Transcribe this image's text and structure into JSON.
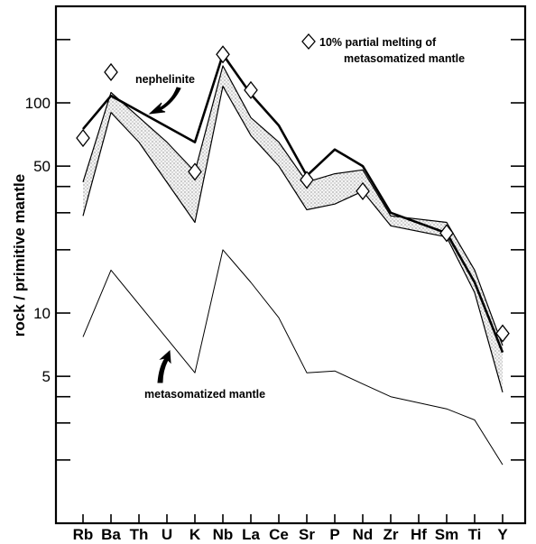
{
  "chart_data": {
    "type": "line",
    "ylabel": "rock / primitive mantle",
    "yscale": "log",
    "ylim": [
      1.6,
      200
    ],
    "yticks": [
      {
        "value": 2,
        "label": ""
      },
      {
        "value": 3,
        "label": ""
      },
      {
        "value": 4,
        "label": ""
      },
      {
        "value": 5,
        "label": "5"
      },
      {
        "value": 10,
        "label": "10"
      },
      {
        "value": 20,
        "label": ""
      },
      {
        "value": 30,
        "label": ""
      },
      {
        "value": 40,
        "label": ""
      },
      {
        "value": 50,
        "label": "50"
      },
      {
        "value": 100,
        "label": "100"
      },
      {
        "value": 200,
        "label": ""
      }
    ],
    "categories": [
      "Rb",
      "Ba",
      "Th",
      "U",
      "K",
      "Nb",
      "La",
      "Ce",
      "Sr",
      "P",
      "Nd",
      "Zr",
      "Hf",
      "Sm",
      "Ti",
      "Y"
    ],
    "series": [
      {
        "name": "nephelinite",
        "style": "thick-line",
        "values": [
          75,
          108,
          null,
          null,
          65,
          170,
          110,
          78,
          45,
          60,
          50,
          30,
          null,
          24,
          14,
          6.5
        ]
      },
      {
        "style": "band-upper",
        "values": [
          42,
          112,
          null,
          65,
          47,
          150,
          85,
          65,
          42,
          46,
          48,
          29,
          null,
          27,
          16,
          7
        ]
      },
      {
        "style": "band-lower",
        "values": [
          29,
          90,
          65,
          null,
          27,
          120,
          70,
          50,
          31,
          33,
          38,
          26,
          null,
          23,
          12.5,
          4.2
        ]
      },
      {
        "name": "metasomatized mantle",
        "style": "thin-line",
        "values": [
          7.7,
          16,
          null,
          null,
          5.2,
          20,
          14,
          9.5,
          5.2,
          5.3,
          4.6,
          4,
          null,
          3.5,
          3.1,
          1.9
        ]
      },
      {
        "name": "10% partial melting of metasomatized mantle",
        "style": "diamond-markers",
        "values": [
          68,
          140,
          null,
          null,
          47,
          170,
          115,
          null,
          43,
          null,
          38,
          null,
          null,
          24,
          null,
          8
        ]
      }
    ],
    "annotations": {
      "legend_line1": "10% partial melting of",
      "legend_line2": "metasomatized mantle",
      "nephelinite_label": "nephelinite",
      "mantle_label": "metasomatized  mantle"
    },
    "grid": false,
    "legend_position": "top-right"
  }
}
